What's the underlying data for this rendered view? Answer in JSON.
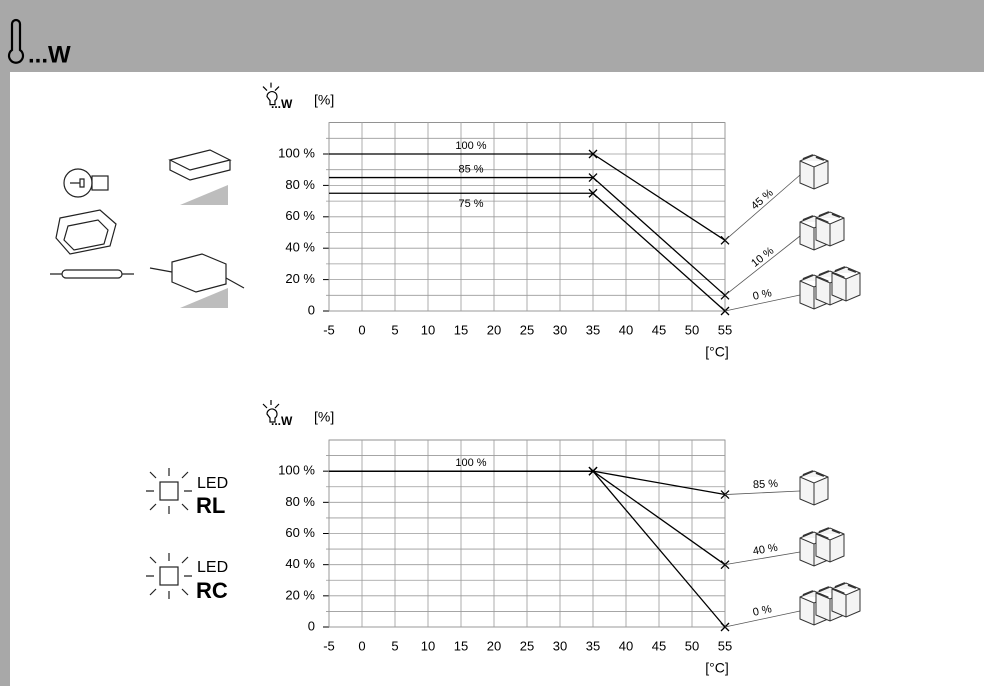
{
  "header": {
    "title": "...W"
  },
  "chart_data": [
    {
      "type": "line",
      "ylabel_prefix": "...W",
      "ylabel": "[%]",
      "xlabel": "[°C]",
      "x": [
        -5,
        35,
        55
      ],
      "xlim": [
        -5,
        55
      ],
      "xticks": [
        -5,
        0,
        5,
        10,
        15,
        20,
        25,
        30,
        35,
        40,
        45,
        50,
        55
      ],
      "ylim": [
        0,
        120
      ],
      "yticks": [
        0,
        {
          "value": 20,
          "label": "20 %"
        },
        {
          "value": 40,
          "label": "40 %"
        },
        {
          "value": 60,
          "label": "60 %"
        },
        {
          "value": 80,
          "label": "80 %"
        },
        {
          "value": 100,
          "label": "100 %"
        }
      ],
      "grid": true,
      "series": [
        {
          "name": "100 %",
          "color": "#000000",
          "values": [
            100,
            100,
            45
          ],
          "value_labels": [
            null,
            null,
            "45 %"
          ]
        },
        {
          "name": "85 %",
          "color": "#000000",
          "values": [
            85,
            85,
            10
          ],
          "value_labels": [
            null,
            null,
            "10 %"
          ]
        },
        {
          "name": "75 %",
          "color": "#000000",
          "values": [
            75,
            75,
            0
          ],
          "value_labels": [
            null,
            null,
            "0 %"
          ]
        }
      ]
    },
    {
      "type": "line",
      "ylabel_prefix": "...W",
      "ylabel": "[%]",
      "xlabel": "[°C]",
      "x": [
        -5,
        35,
        55
      ],
      "xlim": [
        -5,
        55
      ],
      "xticks": [
        -5,
        0,
        5,
        10,
        15,
        20,
        25,
        30,
        35,
        40,
        45,
        50,
        55
      ],
      "ylim": [
        0,
        120
      ],
      "yticks": [
        0,
        {
          "value": 20,
          "label": "20 %"
        },
        {
          "value": 40,
          "label": "40 %"
        },
        {
          "value": 60,
          "label": "60 %"
        },
        {
          "value": 80,
          "label": "80 %"
        },
        {
          "value": 100,
          "label": "100 %"
        }
      ],
      "grid": true,
      "light_sources": [
        {
          "label": "LED",
          "type": "RL"
        },
        {
          "label": "LED",
          "type": "RC"
        }
      ],
      "series": [
        {
          "name": "100 %",
          "color": "#000000",
          "values": [
            100,
            100,
            85
          ],
          "value_labels": [
            null,
            null,
            "85 %"
          ]
        },
        {
          "color": "#000000",
          "values": [
            100,
            100,
            40
          ],
          "value_labels": [
            null,
            null,
            "40 %"
          ]
        },
        {
          "color": "#000000",
          "values": [
            100,
            100,
            0
          ],
          "value_labels": [
            null,
            null,
            "0 %"
          ]
        }
      ]
    }
  ]
}
